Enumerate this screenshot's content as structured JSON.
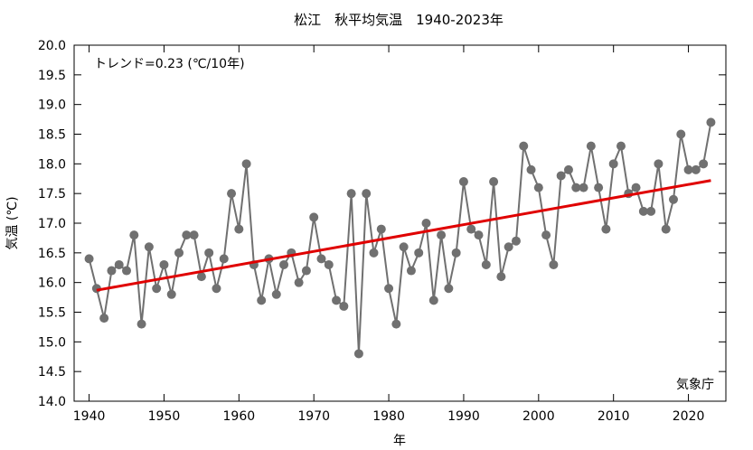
{
  "chart_data": {
    "type": "line",
    "title": "松江　秋平均気温　1940-2023年",
    "xlabel": "年",
    "ylabel": "気温 (℃)",
    "annotation": "トレンド=0.23 (℃/10年)",
    "source": "気象庁",
    "xlim": [
      1938,
      2025
    ],
    "ylim": [
      14.0,
      20.0
    ],
    "xticks": [
      "1940",
      "1950",
      "1960",
      "1970",
      "1980",
      "1990",
      "2000",
      "2010",
      "2020"
    ],
    "yticks": [
      "14.0",
      "14.5",
      "15.0",
      "15.5",
      "16.0",
      "16.5",
      "17.0",
      "17.5",
      "18.0",
      "18.5",
      "19.0",
      "19.5",
      "20.0"
    ],
    "grid": false,
    "colors": {
      "series": "#707070",
      "trend": "#e00000",
      "axis": "#000000"
    },
    "series": [
      {
        "x": [
          1940,
          1941,
          1942,
          1943,
          1944,
          1945,
          1946,
          1947,
          1948,
          1949,
          1950,
          1951,
          1952,
          1953,
          1954,
          1955,
          1956,
          1957,
          1958,
          1959,
          1960,
          1961,
          1962,
          1963,
          1964,
          1965,
          1966,
          1967,
          1968,
          1969,
          1970,
          1971,
          1972,
          1973,
          1974,
          1975,
          1976,
          1977,
          1978,
          1979,
          1980,
          1981,
          1982,
          1983,
          1984,
          1985,
          1986,
          1987,
          1988,
          1989,
          1990,
          1991,
          1992,
          1993,
          1994,
          1995,
          1996,
          1997,
          1998,
          1999,
          2000,
          2001,
          2002,
          2003,
          2004,
          2005,
          2006,
          2007,
          2008,
          2009,
          2010,
          2011,
          2012,
          2013,
          2014,
          2015,
          2016,
          2017,
          2018,
          2019,
          2020,
          2021,
          2022,
          2023
        ],
        "values": [
          16.4,
          15.9,
          15.4,
          16.2,
          16.3,
          16.2,
          16.8,
          15.3,
          16.6,
          15.9,
          16.3,
          15.8,
          16.5,
          16.8,
          16.8,
          16.1,
          16.5,
          15.9,
          16.4,
          17.5,
          16.9,
          18.0,
          16.3,
          15.7,
          16.4,
          15.8,
          16.3,
          16.5,
          16.0,
          16.2,
          17.1,
          16.4,
          16.3,
          15.7,
          15.6,
          17.5,
          14.8,
          17.5,
          16.5,
          16.9,
          15.9,
          15.3,
          16.6,
          16.2,
          16.5,
          17.0,
          15.7,
          16.8,
          15.9,
          16.5,
          17.7,
          16.9,
          16.8,
          16.3,
          17.7,
          16.1,
          16.6,
          16.7,
          18.3,
          17.9,
          17.6,
          16.8,
          16.3,
          17.8,
          17.9,
          17.6,
          17.6,
          18.3,
          17.6,
          16.9,
          18.0,
          18.3,
          17.5,
          17.6,
          17.2,
          17.2,
          18.0,
          16.9,
          17.4,
          18.5,
          17.9,
          17.9,
          18.0,
          18.7
        ]
      }
    ],
    "trend": {
      "x": [
        1941,
        2023
      ],
      "values": [
        15.87,
        17.72
      ]
    }
  }
}
